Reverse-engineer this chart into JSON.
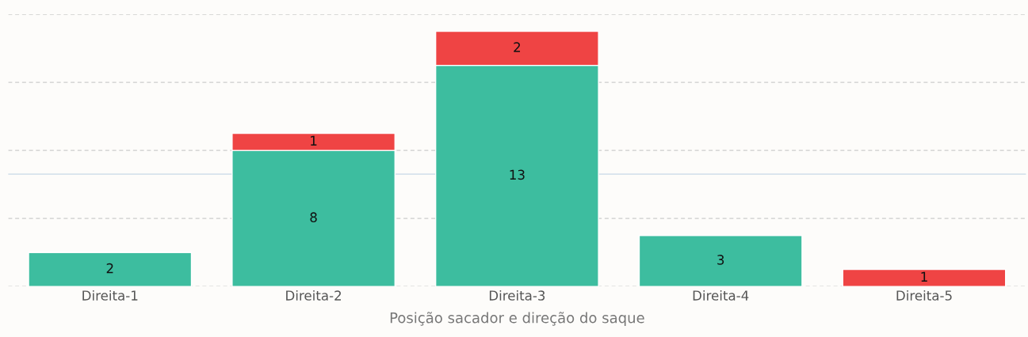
{
  "chart_data": {
    "type": "bar",
    "stacked": true,
    "xlabel": "Posição sacador e direção do saque",
    "categories": [
      "Direita-1",
      "Direita-2",
      "Direita-3",
      "Direita-4",
      "Direita-5"
    ],
    "series": [
      {
        "color": "#3dbd9f",
        "values": [
          2,
          8,
          13,
          3,
          null
        ],
        "value_labels": [
          "2",
          "8",
          "13",
          "3",
          null
        ]
      },
      {
        "color": "#ef4444",
        "values": [
          null,
          1,
          2,
          null,
          1
        ],
        "value_labels": [
          null,
          "1",
          "2",
          null,
          "1"
        ]
      }
    ],
    "ylim": [
      0,
      16
    ],
    "yticks": [
      {
        "value": 0,
        "label": null
      },
      {
        "value": 4,
        "label": null
      },
      {
        "value": 8,
        "label": null
      },
      {
        "value": 12,
        "label": null
      },
      {
        "value": 16,
        "label": null
      }
    ],
    "ref_lines": [
      {
        "axis": "y",
        "value": 6.6,
        "color": "#d6e2ec",
        "line_style": "solid"
      }
    ],
    "grid": "y",
    "tick_labels": "x"
  }
}
